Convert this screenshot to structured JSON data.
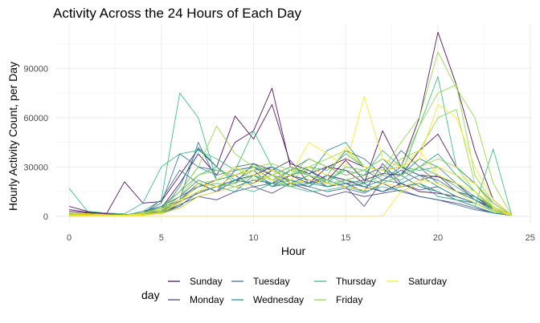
{
  "chart_data": {
    "type": "line",
    "title": "Activity Across the 24 Hours of Each Day",
    "xlabel": "Hour",
    "ylabel": "Hourly Activity Count, per Day",
    "xlim": [
      -0.7,
      25.1
    ],
    "ylim": [
      -4000,
      117000
    ],
    "x_ticks": [
      0,
      5,
      10,
      15,
      20,
      25
    ],
    "x_tick_labels": [
      "0",
      "5",
      "10",
      "15",
      "20",
      "25"
    ],
    "y_ticks": [
      0,
      30000,
      60000,
      90000
    ],
    "y_tick_labels": [
      "0",
      "30000",
      "60000",
      "90000"
    ],
    "grid": true,
    "legend_position": "bottom",
    "legend_title": "day",
    "x": [
      0,
      1,
      2,
      3,
      4,
      5,
      6,
      7,
      8,
      9,
      10,
      11,
      12,
      13,
      14,
      15,
      16,
      17,
      18,
      19,
      20,
      21,
      22,
      23,
      24
    ],
    "series_legend": [
      {
        "name": "Sunday",
        "color": "#440154"
      },
      {
        "name": "Monday",
        "color": "#443a83"
      },
      {
        "name": "Tuesday",
        "color": "#31688e"
      },
      {
        "name": "Wednesday",
        "color": "#21908d"
      },
      {
        "name": "Thursday",
        "color": "#35b779"
      },
      {
        "name": "Friday",
        "color": "#8fd744"
      },
      {
        "name": "Saturday",
        "color": "#fde725"
      }
    ],
    "series": [
      {
        "day": "Sunday",
        "values": [
          6000,
          3000,
          1500,
          1000,
          2000,
          5000,
          20000,
          38000,
          25000,
          45000,
          52000,
          78000,
          30000,
          26000,
          30000,
          35000,
          30000,
          28000,
          30000,
          60000,
          112000,
          80000,
          40000,
          10000,
          500
        ]
      },
      {
        "day": "Sunday",
        "values": [
          3000,
          2000,
          1000,
          21000,
          8000,
          9000,
          25000,
          41000,
          30000,
          61000,
          47000,
          68000,
          32000,
          28000,
          22000,
          34000,
          22000,
          26000,
          25000,
          40000,
          50000,
          30000,
          20000,
          8000,
          500
        ]
      },
      {
        "day": "Sunday",
        "values": [
          2000,
          1000,
          800,
          600,
          1200,
          3000,
          8000,
          20000,
          15000,
          22000,
          25000,
          30000,
          25000,
          20000,
          30000,
          28000,
          20000,
          52000,
          30000,
          25000,
          24000,
          20000,
          10000,
          5000,
          500
        ]
      },
      {
        "day": "Sunday",
        "values": [
          4000,
          2500,
          1500,
          1000,
          1500,
          3000,
          6000,
          15000,
          18000,
          22000,
          20000,
          28000,
          22000,
          18000,
          25000,
          22000,
          18000,
          15000,
          20000,
          15000,
          14000,
          12000,
          8000,
          3000,
          500
        ]
      },
      {
        "day": "Monday",
        "values": [
          1000,
          800,
          600,
          500,
          3000,
          6000,
          12000,
          18000,
          22000,
          25000,
          28000,
          18000,
          25000,
          22000,
          20000,
          18000,
          6000,
          22000,
          28000,
          22000,
          25000,
          15000,
          12000,
          5000,
          500
        ]
      },
      {
        "day": "Monday",
        "values": [
          500,
          400,
          300,
          400,
          2000,
          5000,
          10000,
          20000,
          15000,
          28000,
          30000,
          25000,
          30000,
          25000,
          18000,
          20000,
          15000,
          32000,
          20000,
          16000,
          18000,
          12000,
          8000,
          3000,
          500
        ]
      },
      {
        "day": "Monday",
        "values": [
          800,
          500,
          400,
          300,
          1000,
          4000,
          9000,
          14000,
          18000,
          20000,
          32000,
          28000,
          34000,
          20000,
          25000,
          22000,
          25000,
          30000,
          18000,
          20000,
          15000,
          10000,
          6000,
          2000,
          500
        ]
      },
      {
        "day": "Monday",
        "values": [
          1500,
          1000,
          800,
          700,
          1200,
          2500,
          7000,
          12000,
          10000,
          15000,
          18000,
          14000,
          20000,
          16000,
          12000,
          15000,
          12000,
          14000,
          16000,
          12000,
          10000,
          8000,
          5000,
          2000,
          500
        ]
      },
      {
        "day": "Tuesday",
        "values": [
          1000,
          500,
          500,
          400,
          1000,
          3000,
          10000,
          45000,
          22000,
          30000,
          32000,
          25000,
          22000,
          30000,
          25000,
          40000,
          35000,
          25000,
          40000,
          30000,
          20000,
          15000,
          10000,
          4000,
          500
        ]
      },
      {
        "day": "Tuesday",
        "values": [
          2000,
          1500,
          1000,
          800,
          2000,
          8000,
          38000,
          30000,
          28000,
          25000,
          18000,
          20000,
          28000,
          35000,
          30000,
          25000,
          28000,
          22000,
          30000,
          25000,
          22000,
          15000,
          12000,
          6000,
          500
        ]
      },
      {
        "day": "Tuesday",
        "values": [
          1500,
          1000,
          600,
          500,
          800,
          2000,
          5000,
          12000,
          15000,
          18000,
          22000,
          20000,
          25000,
          22000,
          18000,
          20000,
          22000,
          20000,
          25000,
          18000,
          15000,
          10000,
          8000,
          3000,
          500
        ]
      },
      {
        "day": "Tuesday",
        "values": [
          500,
          400,
          300,
          300,
          1500,
          10000,
          28000,
          20000,
          15000,
          22000,
          25000,
          18000,
          20000,
          18000,
          15000,
          17000,
          14000,
          20000,
          15000,
          12000,
          10000,
          7000,
          4000,
          2000,
          500
        ]
      },
      {
        "day": "Wednesday",
        "values": [
          1000,
          800,
          600,
          500,
          2000,
          6000,
          15000,
          30000,
          25000,
          28000,
          30000,
          22000,
          25000,
          28000,
          20000,
          30000,
          28000,
          35000,
          25000,
          30000,
          38000,
          25000,
          15000,
          6000,
          500
        ]
      },
      {
        "day": "Wednesday",
        "values": [
          2000,
          1500,
          1000,
          800,
          1000,
          3000,
          18000,
          42000,
          30000,
          22000,
          28000,
          30000,
          20000,
          25000,
          40000,
          45000,
          30000,
          28000,
          25000,
          35000,
          30000,
          20000,
          12000,
          4000,
          500
        ]
      },
      {
        "day": "Wednesday",
        "values": [
          800,
          600,
          500,
          400,
          800,
          2000,
          6000,
          15000,
          18000,
          22000,
          20000,
          25000,
          18000,
          20000,
          22000,
          18000,
          20000,
          15000,
          18000,
          20000,
          12000,
          10000,
          6000,
          2000,
          500
        ]
      },
      {
        "day": "Wednesday",
        "values": [
          1500,
          1000,
          700,
          600,
          1500,
          4000,
          12000,
          22000,
          18000,
          15000,
          25000,
          20000,
          22000,
          18000,
          25000,
          20000,
          18000,
          22000,
          20000,
          25000,
          18000,
          12000,
          8000,
          3000,
          500
        ]
      },
      {
        "day": "Thursday",
        "values": [
          17000,
          3000,
          2000,
          1500,
          8000,
          30000,
          38000,
          40000,
          35000,
          28000,
          52000,
          30000,
          25000,
          30000,
          28000,
          38000,
          30000,
          28000,
          25000,
          55000,
          85000,
          30000,
          20000,
          8000,
          500
        ]
      },
      {
        "day": "Thursday",
        "values": [
          1500,
          1000,
          800,
          500,
          3000,
          10000,
          75000,
          60000,
          22000,
          25000,
          30000,
          22000,
          28000,
          25000,
          22000,
          28000,
          25000,
          40000,
          30000,
          28000,
          30000,
          25000,
          15000,
          5000,
          500
        ]
      },
      {
        "day": "Thursday",
        "values": [
          1000,
          800,
          600,
          500,
          1500,
          5000,
          15000,
          25000,
          30000,
          20000,
          25000,
          18000,
          22000,
          20000,
          18000,
          22000,
          20000,
          25000,
          22000,
          30000,
          25000,
          18000,
          10000,
          3000,
          500
        ]
      },
      {
        "day": "Thursday",
        "values": [
          500,
          400,
          300,
          300,
          1000,
          3000,
          10000,
          18000,
          20000,
          18000,
          15000,
          20000,
          18000,
          15000,
          16000,
          18000,
          15000,
          18000,
          15000,
          20000,
          15000,
          10000,
          6000,
          41000,
          500
        ]
      },
      {
        "day": "Friday",
        "values": [
          2000,
          1500,
          1000,
          800,
          2000,
          5000,
          15000,
          30000,
          55000,
          38000,
          30000,
          32000,
          28000,
          30000,
          35000,
          40000,
          30000,
          28000,
          45000,
          60000,
          100000,
          78000,
          60000,
          20000,
          500
        ]
      },
      {
        "day": "Friday",
        "values": [
          1000,
          800,
          600,
          500,
          1500,
          4000,
          12000,
          25000,
          28000,
          25000,
          30000,
          28000,
          25000,
          35000,
          30000,
          25000,
          28000,
          35000,
          30000,
          55000,
          75000,
          80000,
          25000,
          8000,
          500
        ]
      },
      {
        "day": "Friday",
        "values": [
          1500,
          1000,
          800,
          600,
          1000,
          3000,
          8000,
          20000,
          22000,
          30000,
          22000,
          25000,
          30000,
          25000,
          22000,
          30000,
          28000,
          25000,
          35000,
          40000,
          60000,
          65000,
          20000,
          6000,
          500
        ]
      },
      {
        "day": "Friday",
        "values": [
          800,
          600,
          500,
          400,
          1000,
          2500,
          10000,
          15000,
          18000,
          20000,
          25000,
          22000,
          18000,
          25000,
          20000,
          22000,
          25000,
          20000,
          25000,
          30000,
          35000,
          30000,
          15000,
          4000,
          500
        ]
      },
      {
        "day": "Saturday",
        "values": [
          1000,
          800,
          600,
          500,
          1000,
          2000,
          8000,
          20000,
          18000,
          25000,
          28000,
          22000,
          25000,
          45000,
          38000,
          30000,
          73000,
          35000,
          30000,
          40000,
          25000,
          20000,
          15000,
          6000,
          500
        ]
      },
      {
        "day": "Saturday",
        "values": [
          2000,
          1500,
          1000,
          800,
          1500,
          4000,
          10000,
          15000,
          22000,
          30000,
          25000,
          28000,
          22000,
          30000,
          25000,
          42000,
          30000,
          28000,
          30000,
          35000,
          68000,
          60000,
          30000,
          10000,
          500
        ]
      },
      {
        "day": "Saturday",
        "values": [
          500,
          400,
          300,
          300,
          500,
          1500,
          5000,
          12000,
          15000,
          18000,
          20000,
          25000,
          20000,
          22000,
          20000,
          18000,
          16000,
          20000,
          18000,
          22000,
          20000,
          15000,
          8000,
          3000,
          500
        ]
      },
      {
        "day": "Saturday",
        "values": [
          0,
          0,
          0,
          0,
          0,
          0,
          0,
          0,
          0,
          0,
          0,
          0,
          0,
          0,
          0,
          0,
          0,
          0,
          15000,
          20000,
          30000,
          25000,
          20000,
          5000,
          500
        ]
      }
    ]
  }
}
